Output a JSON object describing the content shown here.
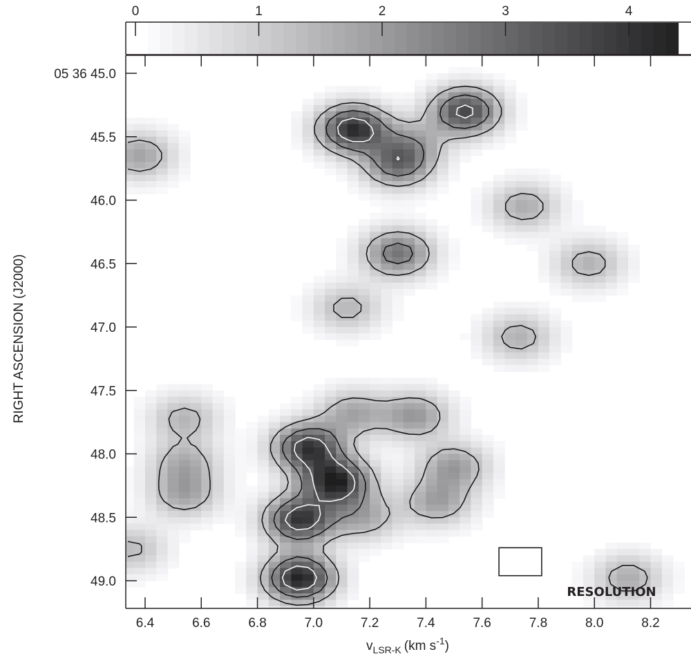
{
  "chart_data": {
    "type": "heatmap",
    "title": "",
    "xlabel": "v",
    "xlabel_sub": "LSR-K",
    "xlabel_units": "(km s",
    "xlabel_units_sup": "-1",
    "xlabel_units_close": ")",
    "ylabel": "RIGHT ASCENSION (J2000)",
    "xlim": [
      6.32,
      8.36
    ],
    "ylim_seconds": [
      45.0,
      49.22
    ],
    "x_ticks": [
      "6.4",
      "6.6",
      "6.8",
      "7.0",
      "7.2",
      "7.4",
      "7.6",
      "7.8",
      "8.0",
      "8.2"
    ],
    "x_tick_values": [
      6.4,
      6.6,
      6.8,
      7.0,
      7.2,
      7.4,
      7.6,
      7.8,
      8.0,
      8.2
    ],
    "y_ticks": [
      "05 36 45.0",
      "45.5",
      "46.0",
      "46.5",
      "47.0",
      "47.5",
      "48.0",
      "48.5",
      "49.0"
    ],
    "y_tick_values": [
      45.0,
      45.5,
      46.0,
      46.5,
      47.0,
      47.5,
      48.0,
      48.5,
      49.0
    ],
    "colorbar": {
      "ticks": [
        "0",
        "1",
        "2",
        "3",
        "4"
      ],
      "tick_values": [
        0,
        1,
        2,
        3,
        4
      ],
      "range": [
        0,
        4.4
      ]
    },
    "resolution_label": "RESOLUTION",
    "resolution_box": {
      "dv": 0.16,
      "dra_seconds": 0.22,
      "center_v": 8.05,
      "center_ra": 48.85
    },
    "emission_peaks": [
      {
        "v": 7.14,
        "ra": 45.44,
        "intensity": 4.1
      },
      {
        "v": 7.54,
        "ra": 45.3,
        "intensity": 3.6
      },
      {
        "v": 7.3,
        "ra": 45.72,
        "intensity": 2.6
      },
      {
        "v": 7.35,
        "ra": 45.55,
        "intensity": 1.4
      },
      {
        "v": 7.75,
        "ra": 46.05,
        "intensity": 1.6
      },
      {
        "v": 7.3,
        "ra": 46.42,
        "intensity": 2.7
      },
      {
        "v": 6.38,
        "ra": 45.65,
        "intensity": 1.8
      },
      {
        "v": 7.98,
        "ra": 46.5,
        "intensity": 1.5
      },
      {
        "v": 7.12,
        "ra": 46.85,
        "intensity": 1.4
      },
      {
        "v": 7.73,
        "ra": 47.08,
        "intensity": 1.5
      },
      {
        "v": 6.98,
        "ra": 47.95,
        "intensity": 3.8
      },
      {
        "v": 7.08,
        "ra": 48.22,
        "intensity": 4.2
      },
      {
        "v": 6.95,
        "ra": 48.52,
        "intensity": 3.9
      },
      {
        "v": 6.95,
        "ra": 48.98,
        "intensity": 4.3
      },
      {
        "v": 7.36,
        "ra": 47.7,
        "intensity": 2.0
      },
      {
        "v": 7.14,
        "ra": 47.68,
        "intensity": 1.7
      },
      {
        "v": 7.5,
        "ra": 48.1,
        "intensity": 1.9
      },
      {
        "v": 7.44,
        "ra": 48.38,
        "intensity": 1.8
      },
      {
        "v": 7.18,
        "ra": 48.5,
        "intensity": 1.6
      },
      {
        "v": 6.54,
        "ra": 48.32,
        "intensity": 1.7
      },
      {
        "v": 6.54,
        "ra": 48.07,
        "intensity": 1.5
      },
      {
        "v": 6.54,
        "ra": 47.72,
        "intensity": 1.4
      },
      {
        "v": 6.35,
        "ra": 48.75,
        "intensity": 1.3
      },
      {
        "v": 8.12,
        "ra": 48.98,
        "intensity": 1.6
      }
    ]
  }
}
